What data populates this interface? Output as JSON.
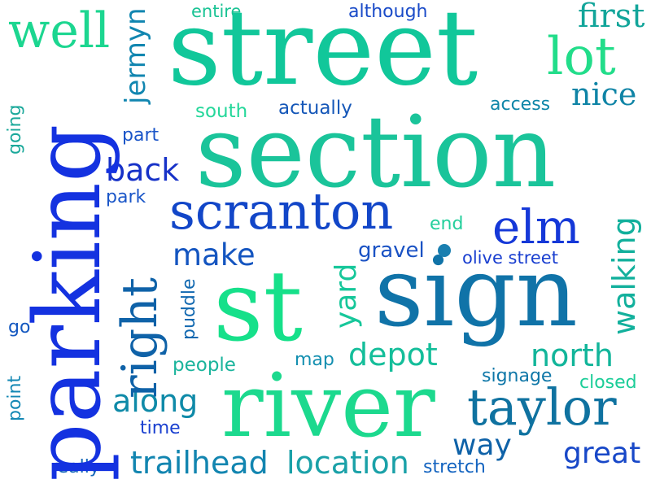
{
  "colors": {
    "background": "#ffffff",
    "blue": "#1f3fe0",
    "teal": "#0f8fa8",
    "green": "#19d58b"
  },
  "words": [
    {
      "id": "well",
      "text": "well",
      "color": "#1cd690"
    },
    {
      "id": "jermyn",
      "text": "jermyn",
      "color": "#1186b0"
    },
    {
      "id": "entire",
      "text": "entire",
      "color": "#19c394"
    },
    {
      "id": "although",
      "text": "although",
      "color": "#1a4bc8"
    },
    {
      "id": "street",
      "text": "street",
      "color": "#11c79a"
    },
    {
      "id": "first",
      "text": "first",
      "color": "#12a59a"
    },
    {
      "id": "lot",
      "text": "lot",
      "color": "#22dd8a"
    },
    {
      "id": "nice",
      "text": "nice",
      "color": "#0f84a6"
    },
    {
      "id": "going",
      "text": "going",
      "color": "#1aa89a"
    },
    {
      "id": "parking",
      "text": "parking",
      "color": "#1432e0"
    },
    {
      "id": "south",
      "text": "south",
      "color": "#25d79a"
    },
    {
      "id": "actually",
      "text": "actually",
      "color": "#1557b8"
    },
    {
      "id": "access",
      "text": "access",
      "color": "#0f86a8"
    },
    {
      "id": "part",
      "text": "part",
      "color": "#1a55c8"
    },
    {
      "id": "section",
      "text": "section",
      "color": "#1ac49a"
    },
    {
      "id": "back",
      "text": "back",
      "color": "#1732c8"
    },
    {
      "id": "park",
      "text": "park",
      "color": "#1a56c8"
    },
    {
      "id": "scranton",
      "text": "scranton",
      "color": "#1246c8"
    },
    {
      "id": "elm",
      "text": "elm",
      "color": "#1538d8"
    },
    {
      "id": "walking",
      "text": "walking",
      "color": "#12b09c"
    },
    {
      "id": "end",
      "text": "end",
      "color": "#24cf9c"
    },
    {
      "id": "right",
      "text": "right",
      "color": "#0f62a8"
    },
    {
      "id": "make",
      "text": "make",
      "color": "#1455c0"
    },
    {
      "id": "gravel",
      "text": "gravel",
      "color": "#1a52c4"
    },
    {
      "id": "olive-street",
      "text": "olive street",
      "color": "#1a3fd0"
    },
    {
      "id": "yard",
      "text": "yard",
      "color": "#16c79a"
    },
    {
      "id": "sign",
      "text": "sign",
      "color": "#1073a8"
    },
    {
      "id": "puddle",
      "text": "puddle",
      "color": "#1168b0"
    },
    {
      "id": "st",
      "text": "st",
      "color": "#16e08a"
    },
    {
      "id": "go",
      "text": "go",
      "color": "#1458c0"
    },
    {
      "id": "people",
      "text": "people",
      "color": "#1ab49c"
    },
    {
      "id": "map",
      "text": "map",
      "color": "#138fb0"
    },
    {
      "id": "depot",
      "text": "depot",
      "color": "#14be9a"
    },
    {
      "id": "north",
      "text": "north",
      "color": "#12b59a"
    },
    {
      "id": "signage",
      "text": "signage",
      "color": "#0f77a8"
    },
    {
      "id": "point",
      "text": "point",
      "color": "#1488b4"
    },
    {
      "id": "along",
      "text": "along",
      "color": "#0f8aa8"
    },
    {
      "id": "river",
      "text": "river",
      "color": "#1cd98e"
    },
    {
      "id": "closed",
      "text": "closed",
      "color": "#1ccd98"
    },
    {
      "id": "taylor",
      "text": "taylor",
      "color": "#0f72a0"
    },
    {
      "id": "time",
      "text": "time",
      "color": "#1a40d0"
    },
    {
      "id": "way",
      "text": "way",
      "color": "#0f62a8"
    },
    {
      "id": "great",
      "text": "great",
      "color": "#1848c8"
    },
    {
      "id": "really",
      "text": "really",
      "color": "#1568b8"
    },
    {
      "id": "trailhead",
      "text": "trailhead",
      "color": "#1285b0"
    },
    {
      "id": "location",
      "text": "location",
      "color": "#1aa1a8"
    },
    {
      "id": "stretch",
      "text": "stretch",
      "color": "#1464c0"
    }
  ]
}
